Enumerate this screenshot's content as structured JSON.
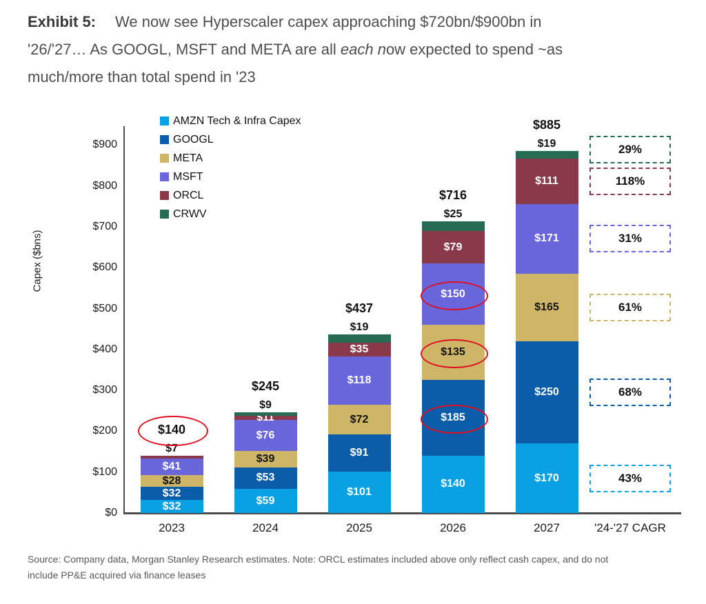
{
  "title": {
    "exhibit": "Exhibit 5:",
    "line1": "We now see Hyperscaler capex approaching $720bn/$900bn in",
    "line2_pre": "'26/'27… As GOOGL, MSFT and META are all ",
    "line2_italic": "each n",
    "line2_post": "ow expected to spend ~as",
    "line3": "much/more than total spend in '23"
  },
  "chart_data": {
    "type": "bar",
    "stacked": true,
    "ylabel": "Capex ($bns)",
    "ylim": [
      0,
      900
    ],
    "ytick_step": 100,
    "ytick_labels": [
      "$0",
      "$100",
      "$200",
      "$300",
      "$400",
      "$500",
      "$600",
      "$700",
      "$800",
      "$900"
    ],
    "categories": [
      "2023",
      "2024",
      "2025",
      "2026",
      "2027"
    ],
    "series": [
      {
        "key": "AMZN",
        "name": "AMZN Tech & Infra Capex",
        "color": "#09A1E3",
        "label_color": "#ffffff",
        "values": [
          32,
          59,
          101,
          140,
          170
        ],
        "cagr": "43%"
      },
      {
        "key": "GOOGL",
        "name": "GOOGL",
        "color": "#0C5DA9",
        "label_color": "#ffffff",
        "values": [
          32,
          53,
          91,
          185,
          250
        ],
        "cagr": "68%"
      },
      {
        "key": "META",
        "name": "META",
        "color": "#CFB567",
        "label_color": "#111111",
        "values": [
          28,
          39,
          72,
          135,
          165
        ],
        "cagr": "61%"
      },
      {
        "key": "MSFT",
        "name": "MSFT",
        "color": "#6966DC",
        "label_color": "#ffffff",
        "values": [
          41,
          76,
          118,
          150,
          171
        ],
        "cagr": "31%"
      },
      {
        "key": "ORCL",
        "name": "ORCL",
        "color": "#8A394B",
        "label_color": "#ffffff",
        "values": [
          7,
          11,
          35,
          79,
          111
        ],
        "cagr": "118%"
      },
      {
        "key": "CRWV",
        "name": "CRWV",
        "color": "#276B55",
        "label_color": "#111111",
        "values": [
          0,
          9,
          19,
          25,
          19
        ],
        "cagr": "29%"
      }
    ],
    "totals": [
      "$140",
      "$245",
      "$437",
      "$716",
      "$885"
    ],
    "above_bar_labels": [
      "$7",
      "$9",
      "$19",
      "$25",
      "$19"
    ],
    "cagr_axis_label": "'24-'27 CAGR",
    "annotations": {
      "circle_color": "#DE1021",
      "circled": [
        {
          "category": "2023",
          "target": "total"
        },
        {
          "category": "2026",
          "target": "GOOGL"
        },
        {
          "category": "2026",
          "target": "META"
        },
        {
          "category": "2026",
          "target": "MSFT"
        }
      ]
    },
    "legend_position": "top-left-inside",
    "grid": false
  },
  "source_lines": [
    "Source: Company data, Morgan Stanley Research estimates. Note: ORCL estimates included above only reflect cash capex, and do not",
    "include PP&E acquired via finance leases"
  ]
}
